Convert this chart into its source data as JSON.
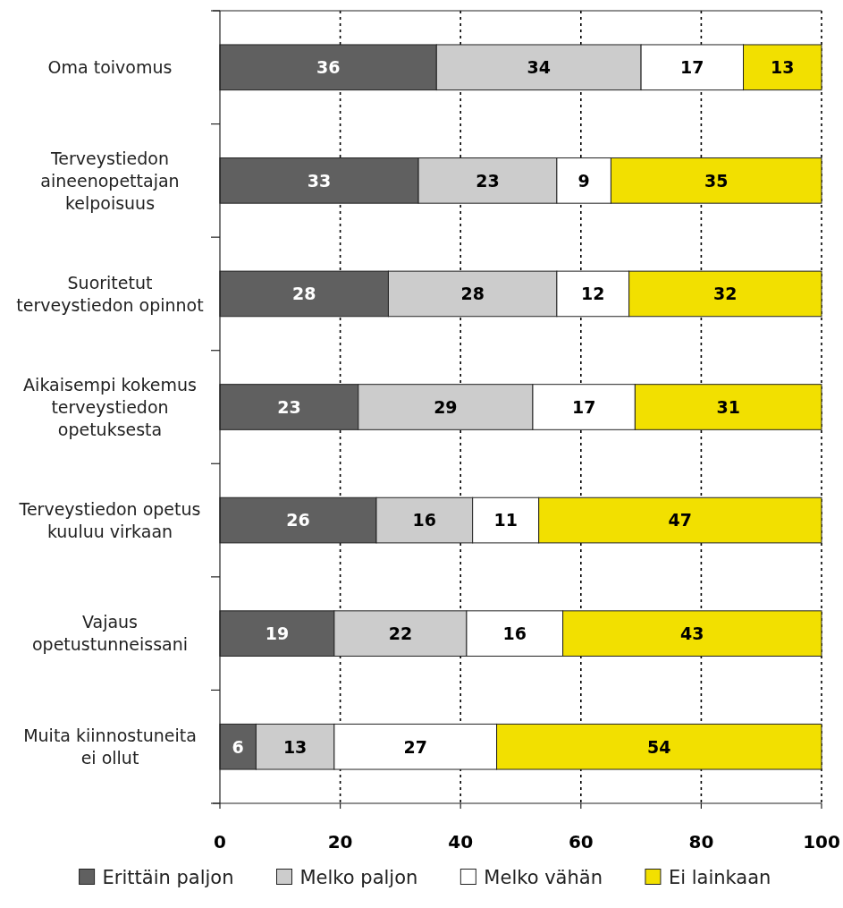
{
  "chart_data": {
    "type": "bar",
    "orientation": "horizontal",
    "stacked": true,
    "categories": [
      "Oma toivomus",
      "Terveystiedon aineenopettajan kelpoisuus",
      "Suoritetut terveystiedon opinnot",
      "Aikaisempi kokemus terveystiedon opetuksesta",
      "Terveystiedon opetus kuuluu virkaan",
      "Vajaus opetustunneissani",
      "Muita kiinnostuneita ei ollut"
    ],
    "series": [
      {
        "name": "Erittäin paljon",
        "color": "#606060",
        "values": [
          36,
          33,
          28,
          23,
          26,
          19,
          6
        ]
      },
      {
        "name": "Melko paljon",
        "color": "#cccccc",
        "values": [
          34,
          23,
          28,
          29,
          16,
          22,
          13
        ]
      },
      {
        "name": "Melko vähän",
        "color": "#ffffff",
        "values": [
          17,
          9,
          12,
          17,
          11,
          16,
          27
        ]
      },
      {
        "name": "Ei lainkaan",
        "color": "#f2e000",
        "values": [
          13,
          35,
          32,
          31,
          47,
          43,
          54
        ]
      }
    ],
    "xlim": [
      0,
      100
    ],
    "xticks": [
      0,
      20,
      40,
      60,
      80,
      100
    ],
    "grid": "x",
    "legend": "bottom",
    "data_labels": true
  }
}
